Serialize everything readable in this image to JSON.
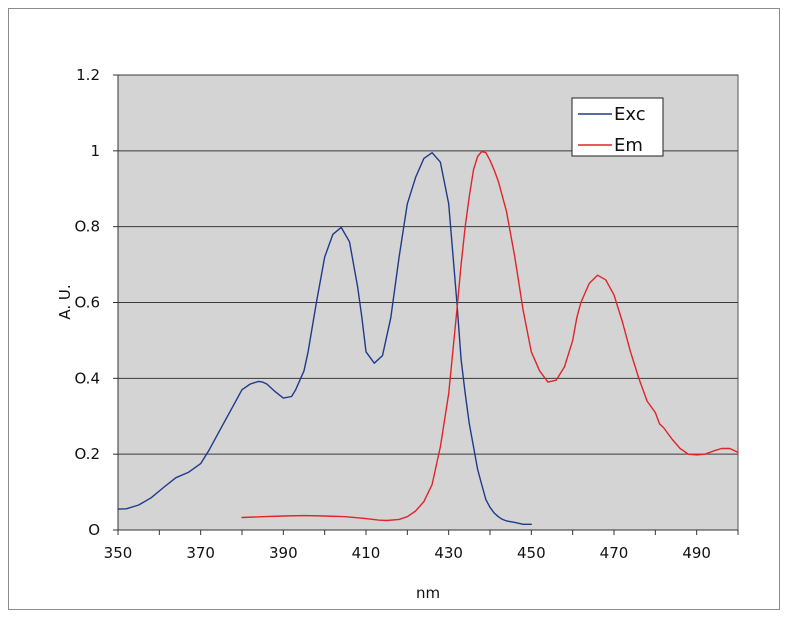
{
  "chart_data": {
    "type": "line",
    "title": "",
    "xlabel": "nm",
    "ylabel": "A. U.",
    "xlim": [
      350,
      500
    ],
    "ylim": [
      0,
      1.2
    ],
    "x_ticks": [
      350,
      370,
      390,
      410,
      430,
      450,
      470,
      490
    ],
    "x_tick_labels": [
      "350",
      "370",
      "390",
      "410",
      "430",
      "450",
      "470",
      "490"
    ],
    "y_ticks": [
      0,
      0.2,
      0.4,
      0.6,
      0.8,
      1,
      1.2
    ],
    "y_tick_labels": [
      "O",
      "O.2",
      "O.4",
      "O.6",
      "O.8",
      "1",
      "1.2"
    ],
    "grid": "horizontal",
    "plot_background": "#d4d4d4",
    "legend_position": "top-right",
    "series": [
      {
        "name": "Exc",
        "color": "#1f3a8a",
        "x": [
          350,
          352,
          355,
          358,
          361,
          364,
          367,
          370,
          372,
          375,
          378,
          380,
          382,
          384,
          385,
          386,
          388,
          390,
          392,
          393,
          395,
          396,
          398,
          400,
          402,
          404,
          406,
          408,
          409,
          410,
          412,
          414,
          416,
          418,
          420,
          422,
          424,
          426,
          428,
          430,
          432,
          433,
          434,
          435,
          436,
          437,
          438,
          439,
          440,
          441,
          442,
          443,
          444,
          445,
          446,
          448,
          450
        ],
        "y": [
          0.055,
          0.056,
          0.066,
          0.085,
          0.112,
          0.138,
          0.152,
          0.175,
          0.21,
          0.27,
          0.33,
          0.37,
          0.385,
          0.392,
          0.39,
          0.385,
          0.365,
          0.348,
          0.352,
          0.37,
          0.42,
          0.47,
          0.6,
          0.72,
          0.78,
          0.798,
          0.76,
          0.64,
          0.56,
          0.47,
          0.44,
          0.46,
          0.56,
          0.72,
          0.86,
          0.93,
          0.98,
          0.995,
          0.97,
          0.86,
          0.6,
          0.45,
          0.36,
          0.28,
          0.22,
          0.16,
          0.12,
          0.08,
          0.06,
          0.045,
          0.035,
          0.028,
          0.024,
          0.022,
          0.02,
          0.015,
          0.015
        ]
      },
      {
        "name": "Em",
        "color": "#e0242a",
        "x": [
          380,
          385,
          390,
          395,
          400,
          405,
          410,
          413,
          415,
          418,
          420,
          422,
          424,
          426,
          428,
          430,
          432,
          433,
          434,
          435,
          436,
          437,
          438,
          439,
          440,
          441,
          442,
          444,
          446,
          448,
          450,
          452,
          454,
          456,
          458,
          460,
          461,
          462,
          464,
          466,
          468,
          470,
          472,
          474,
          476,
          478,
          480,
          481,
          482,
          484,
          486,
          488,
          490,
          492,
          494,
          496,
          498,
          500
        ],
        "y": [
          0.033,
          0.035,
          0.037,
          0.038,
          0.037,
          0.035,
          0.03,
          0.026,
          0.025,
          0.028,
          0.035,
          0.05,
          0.075,
          0.12,
          0.22,
          0.36,
          0.58,
          0.7,
          0.8,
          0.88,
          0.95,
          0.985,
          0.998,
          0.995,
          0.975,
          0.95,
          0.92,
          0.84,
          0.72,
          0.58,
          0.47,
          0.42,
          0.39,
          0.395,
          0.43,
          0.5,
          0.56,
          0.6,
          0.65,
          0.672,
          0.66,
          0.62,
          0.55,
          0.47,
          0.4,
          0.34,
          0.31,
          0.28,
          0.27,
          0.24,
          0.215,
          0.2,
          0.198,
          0.2,
          0.208,
          0.215,
          0.215,
          0.205
        ]
      }
    ]
  }
}
